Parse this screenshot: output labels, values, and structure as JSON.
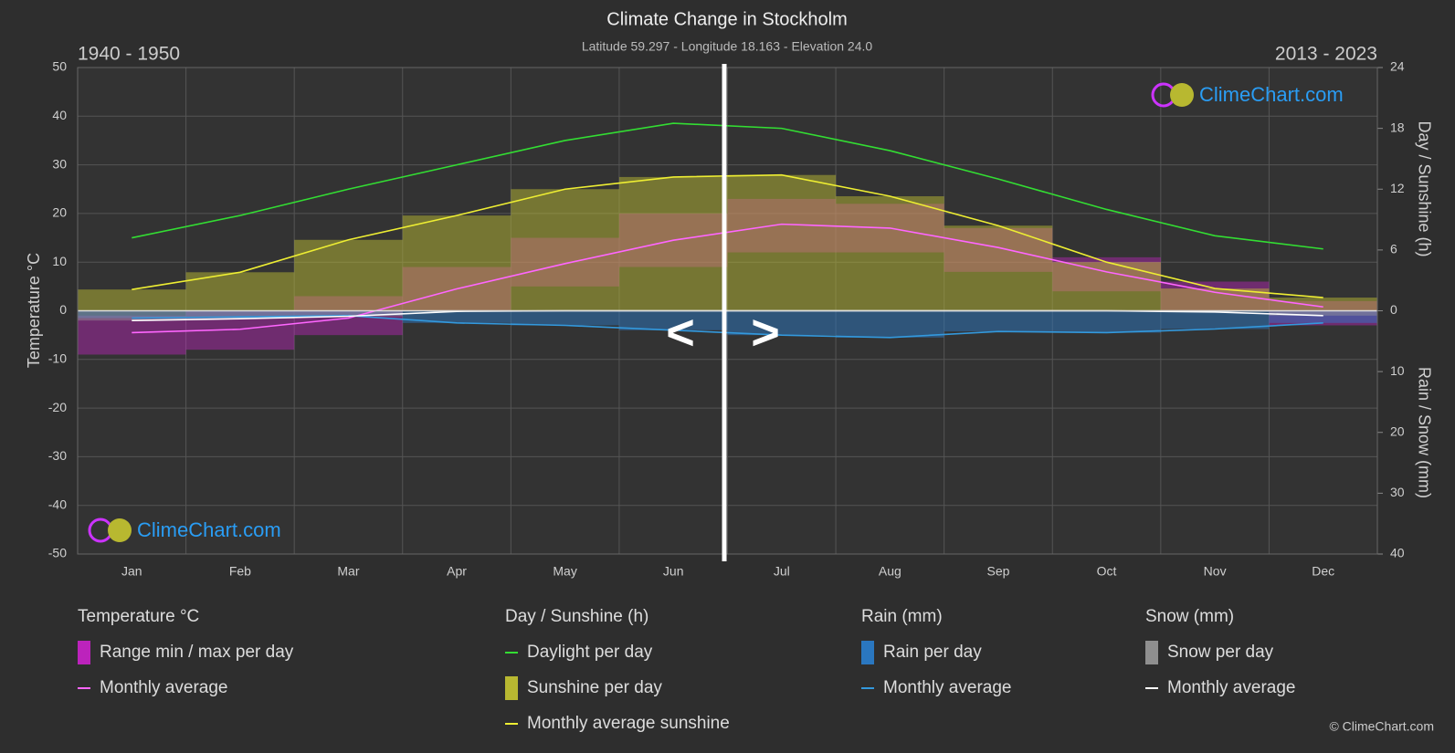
{
  "title": "Climate Change in Stockholm",
  "subtitle": "Latitude 59.297 - Longitude 18.163 - Elevation 24.0",
  "period_left": "1940 - 1950",
  "period_right": "2013 - 2023",
  "watermark": "ClimeChart.com",
  "copyright": "© ClimeChart.com",
  "nav": {
    "prev": "<",
    "next": ">"
  },
  "chart_data": {
    "type": "line",
    "categories": [
      "Jan",
      "Feb",
      "Mar",
      "Apr",
      "May",
      "Jun",
      "Jul",
      "Aug",
      "Sep",
      "Oct",
      "Nov",
      "Dec"
    ],
    "ylabel": "Temperature °C",
    "y2label": "Day / Sunshine (h)",
    "y3label": "Rain / Snow (mm)",
    "ylim": [
      -50,
      50
    ],
    "yticks": [
      -50,
      -40,
      -30,
      -20,
      -10,
      0,
      10,
      20,
      30,
      40,
      50
    ],
    "y2lim": [
      0,
      24
    ],
    "y2ticks": [
      0,
      6,
      12,
      18,
      24
    ],
    "y3lim": [
      0,
      40
    ],
    "y3ticks": [
      10,
      20,
      30,
      40
    ],
    "grid": true,
    "groups": [
      {
        "title": "Temperature °C",
        "axis": "y",
        "items": [
          {
            "name": "Range min / max per day",
            "kind": "range",
            "color": "#e020e0",
            "min": [
              -9,
              -8,
              -5,
              0,
              5,
              9,
              12,
              12,
              8,
              4,
              0,
              -3
            ],
            "max": [
              -1,
              0,
              3,
              9,
              15,
              20,
              23,
              22,
              17,
              11,
              6,
              2
            ]
          },
          {
            "name": "Monthly average",
            "kind": "line",
            "color": "#ff66ff",
            "values": [
              -4.5,
              -3.8,
              -1.5,
              4.5,
              9.7,
              14.5,
              17.8,
              17,
              13,
              8,
              3.8,
              0.8
            ]
          }
        ]
      },
      {
        "title": "Day / Sunshine (h)",
        "axis": "y2",
        "items": [
          {
            "name": "Daylight per day",
            "kind": "line",
            "color": "#33dd33",
            "values": [
              7.2,
              9.4,
              12,
              14.4,
              16.8,
              18.5,
              18,
              15.8,
              13,
              10,
              7.4,
              6.1
            ]
          },
          {
            "name": "Sunshine per day",
            "kind": "fill",
            "color": "#c8c832"
          },
          {
            "name": "Monthly average sunshine",
            "kind": "line",
            "color": "#eeee33",
            "values": [
              2.1,
              3.8,
              7,
              9.4,
              12,
              13.2,
              13.4,
              11.3,
              8.4,
              4.8,
              2.2,
              1.3
            ]
          }
        ]
      },
      {
        "title": "Rain (mm)",
        "axis": "y3",
        "items": [
          {
            "name": "Rain per day",
            "kind": "fill",
            "color": "#2a7fd0"
          },
          {
            "name": "Monthly average",
            "kind": "line",
            "color": "#3399dd",
            "values": [
              1.2,
              1,
              0.8,
              2,
              2.4,
              3.2,
              4,
              4.4,
              3.4,
              3.6,
              3,
              2
            ]
          }
        ]
      },
      {
        "title": "Snow (mm)",
        "axis": "y3",
        "items": [
          {
            "name": "Snow per day",
            "kind": "fill",
            "color": "#9a9a9a"
          },
          {
            "name": "Monthly average",
            "kind": "line",
            "color": "#ffffff",
            "values": [
              1.6,
              1.3,
              0.9,
              0.1,
              0,
              0,
              0,
              0,
              0,
              0,
              0.2,
              0.8
            ]
          }
        ]
      }
    ]
  }
}
